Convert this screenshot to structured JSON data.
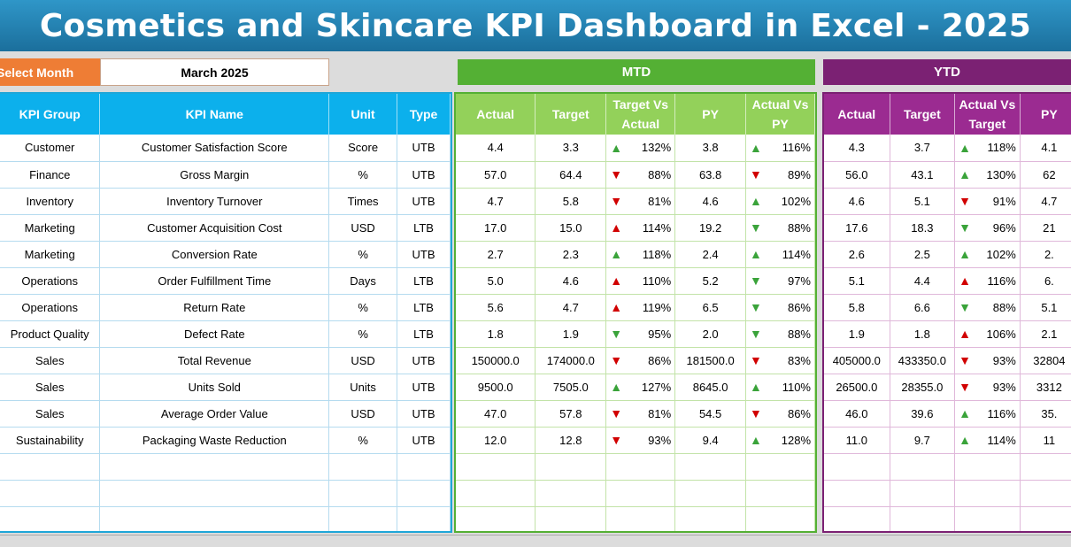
{
  "title": "Cosmetics and Skincare KPI Dashboard in Excel - 2025",
  "select_month": {
    "label": "Select Month",
    "value": "March 2025"
  },
  "sections": {
    "mtd": "MTD",
    "ytd": "YTD"
  },
  "left_headers": [
    "KPI Group",
    "KPI Name",
    "Unit",
    "Type"
  ],
  "mtd_headers": [
    "Actual",
    "Target",
    "Target Vs Actual",
    "PY",
    "Actual Vs PY"
  ],
  "ytd_headers": [
    "Actual",
    "Target",
    "Actual Vs Target",
    "PY"
  ],
  "rows": [
    {
      "group": "Customer",
      "name": "Customer Satisfaction Score",
      "unit": "Score",
      "type": "UTB",
      "mtd": {
        "actual": "4.4",
        "target": "3.3",
        "tva": "132%",
        "tva_dir": "up",
        "py": "3.8",
        "avp": "116%",
        "avp_dir": "up"
      },
      "ytd": {
        "actual": "4.3",
        "target": "3.7",
        "avt": "118%",
        "avt_dir": "up",
        "py": "4.1"
      }
    },
    {
      "group": "Finance",
      "name": "Gross Margin",
      "unit": "%",
      "type": "UTB",
      "mtd": {
        "actual": "57.0",
        "target": "64.4",
        "tva": "88%",
        "tva_dir": "down",
        "py": "63.8",
        "avp": "89%",
        "avp_dir": "down"
      },
      "ytd": {
        "actual": "56.0",
        "target": "43.1",
        "avt": "130%",
        "avt_dir": "up",
        "py": "62"
      }
    },
    {
      "group": "Inventory",
      "name": "Inventory Turnover",
      "unit": "Times",
      "type": "UTB",
      "mtd": {
        "actual": "4.7",
        "target": "5.8",
        "tva": "81%",
        "tva_dir": "down",
        "py": "4.6",
        "avp": "102%",
        "avp_dir": "up"
      },
      "ytd": {
        "actual": "4.6",
        "target": "5.1",
        "avt": "91%",
        "avt_dir": "down",
        "py": "4.7"
      }
    },
    {
      "group": "Marketing",
      "name": "Customer Acquisition Cost",
      "unit": "USD",
      "type": "LTB",
      "mtd": {
        "actual": "17.0",
        "target": "15.0",
        "tva": "114%",
        "tva_dir": "up",
        "py": "19.2",
        "avp": "88%",
        "avp_dir": "down"
      },
      "ytd": {
        "actual": "17.6",
        "target": "18.3",
        "avt": "96%",
        "avt_dir": "down",
        "py": "21"
      }
    },
    {
      "group": "Marketing",
      "name": "Conversion Rate",
      "unit": "%",
      "type": "UTB",
      "mtd": {
        "actual": "2.7",
        "target": "2.3",
        "tva": "118%",
        "tva_dir": "up",
        "py": "2.4",
        "avp": "114%",
        "avp_dir": "up"
      },
      "ytd": {
        "actual": "2.6",
        "target": "2.5",
        "avt": "102%",
        "avt_dir": "up",
        "py": "2."
      }
    },
    {
      "group": "Operations",
      "name": "Order Fulfillment Time",
      "unit": "Days",
      "type": "LTB",
      "mtd": {
        "actual": "5.0",
        "target": "4.6",
        "tva": "110%",
        "tva_dir": "up",
        "py": "5.2",
        "avp": "97%",
        "avp_dir": "down"
      },
      "ytd": {
        "actual": "5.1",
        "target": "4.4",
        "avt": "116%",
        "avt_dir": "up",
        "py": "6."
      }
    },
    {
      "group": "Operations",
      "name": "Return Rate",
      "unit": "%",
      "type": "LTB",
      "mtd": {
        "actual": "5.6",
        "target": "4.7",
        "tva": "119%",
        "tva_dir": "up",
        "py": "6.5",
        "avp": "86%",
        "avp_dir": "down"
      },
      "ytd": {
        "actual": "5.8",
        "target": "6.6",
        "avt": "88%",
        "avt_dir": "down",
        "py": "5.1"
      }
    },
    {
      "group": "Product Quality",
      "name": "Defect Rate",
      "unit": "%",
      "type": "LTB",
      "mtd": {
        "actual": "1.8",
        "target": "1.9",
        "tva": "95%",
        "tva_dir": "down",
        "py": "2.0",
        "avp": "88%",
        "avp_dir": "down"
      },
      "ytd": {
        "actual": "1.9",
        "target": "1.8",
        "avt": "106%",
        "avt_dir": "up",
        "py": "2.1"
      }
    },
    {
      "group": "Sales",
      "name": "Total Revenue",
      "unit": "USD",
      "type": "UTB",
      "mtd": {
        "actual": "150000.0",
        "target": "174000.0",
        "tva": "86%",
        "tva_dir": "down",
        "py": "181500.0",
        "avp": "83%",
        "avp_dir": "down"
      },
      "ytd": {
        "actual": "405000.0",
        "target": "433350.0",
        "avt": "93%",
        "avt_dir": "down",
        "py": "32804"
      }
    },
    {
      "group": "Sales",
      "name": "Units Sold",
      "unit": "Units",
      "type": "UTB",
      "mtd": {
        "actual": "9500.0",
        "target": "7505.0",
        "tva": "127%",
        "tva_dir": "up",
        "py": "8645.0",
        "avp": "110%",
        "avp_dir": "up"
      },
      "ytd": {
        "actual": "26500.0",
        "target": "28355.0",
        "avt": "93%",
        "avt_dir": "down",
        "py": "3312"
      }
    },
    {
      "group": "Sales",
      "name": "Average Order Value",
      "unit": "USD",
      "type": "UTB",
      "mtd": {
        "actual": "47.0",
        "target": "57.8",
        "tva": "81%",
        "tva_dir": "down",
        "py": "54.5",
        "avp": "86%",
        "avp_dir": "down"
      },
      "ytd": {
        "actual": "46.0",
        "target": "39.6",
        "avt": "116%",
        "avt_dir": "up",
        "py": "35."
      }
    },
    {
      "group": "Sustainability",
      "name": "Packaging Waste Reduction",
      "unit": "%",
      "type": "UTB",
      "mtd": {
        "actual": "12.0",
        "target": "12.8",
        "tva": "93%",
        "tva_dir": "down",
        "py": "9.4",
        "avp": "128%",
        "avp_dir": "up"
      },
      "ytd": {
        "actual": "11.0",
        "target": "9.7",
        "avt": "114%",
        "avt_dir": "up",
        "py": "11"
      }
    }
  ],
  "empty_rows": 3,
  "colors": {
    "banner": "#1f7fb0",
    "select_label": "#ee7d35",
    "mtd": "#54b034",
    "ytd": "#7b2173",
    "left_header": "#0cb0ec",
    "arrow_up": "#3aa33a",
    "arrow_down": "#d10000"
  }
}
